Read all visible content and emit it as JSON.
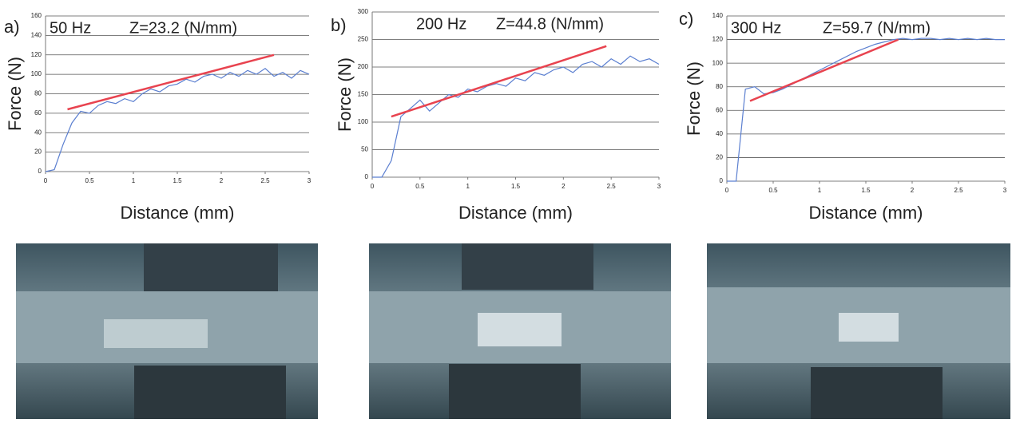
{
  "chart_data": [
    {
      "type": "line",
      "panel": "a)",
      "title": "50 Hz",
      "annotation": "Z=23.2 (N/mm)",
      "x_label": "Distance (mm)",
      "y_label": "Force (N)",
      "xlim": [
        0,
        3
      ],
      "xticks": [
        0,
        0.5,
        1,
        1.5,
        2,
        2.5,
        3
      ],
      "ylim": [
        0,
        160
      ],
      "yticks": [
        0,
        20,
        40,
        60,
        80,
        100,
        120,
        140,
        160
      ],
      "grid": true,
      "x": [
        0,
        0.1,
        0.2,
        0.3,
        0.4,
        0.5,
        0.6,
        0.7,
        0.8,
        0.9,
        1,
        1.1,
        1.2,
        1.3,
        1.4,
        1.5,
        1.6,
        1.7,
        1.8,
        1.9,
        2,
        2.1,
        2.2,
        2.3,
        2.4,
        2.5,
        2.6,
        2.7,
        2.8,
        2.9,
        3
      ],
      "values": [
        0,
        2,
        28,
        50,
        62,
        60,
        68,
        72,
        70,
        75,
        72,
        80,
        85,
        82,
        88,
        90,
        95,
        92,
        98,
        100,
        96,
        102,
        98,
        104,
        100,
        106,
        98,
        102,
        96,
        104,
        100
      ],
      "color": "#5b7fd0",
      "fit_line": {
        "color": "#e8434f",
        "x": [
          0.25,
          2.6
        ],
        "values": [
          64,
          120
        ]
      }
    },
    {
      "type": "line",
      "panel": "b)",
      "title": "200 Hz",
      "annotation": "Z=44.8 (N/mm)",
      "x_label": "Distance (mm)",
      "y_label": "Force (N)",
      "xlim": [
        0,
        3
      ],
      "xticks": [
        0,
        0.5,
        1,
        1.5,
        2,
        2.5,
        3
      ],
      "ylim": [
        0,
        300
      ],
      "yticks": [
        0,
        50,
        100,
        150,
        200,
        250,
        300
      ],
      "grid": true,
      "x": [
        0,
        0.1,
        0.2,
        0.3,
        0.4,
        0.5,
        0.6,
        0.7,
        0.8,
        0.9,
        1,
        1.1,
        1.2,
        1.3,
        1.4,
        1.5,
        1.6,
        1.7,
        1.8,
        1.9,
        2,
        2.1,
        2.2,
        2.3,
        2.4,
        2.5,
        2.6,
        2.7,
        2.8,
        2.9,
        3
      ],
      "values": [
        0,
        0,
        30,
        110,
        125,
        140,
        120,
        135,
        150,
        145,
        160,
        155,
        165,
        170,
        165,
        180,
        175,
        190,
        185,
        195,
        200,
        190,
        205,
        210,
        200,
        215,
        205,
        220,
        210,
        215,
        205
      ],
      "color": "#5b7fd0",
      "fit_line": {
        "color": "#e8434f",
        "x": [
          0.2,
          2.45
        ],
        "values": [
          110,
          238
        ]
      }
    },
    {
      "type": "line",
      "panel": "c)",
      "title": "300 Hz",
      "annotation": "Z=59.7 (N/mm)",
      "x_label": "Distance (mm)",
      "y_label": "Force (N)",
      "xlim": [
        0,
        3
      ],
      "xticks": [
        0,
        0.5,
        1,
        1.5,
        2,
        2.5,
        3
      ],
      "ylim": [
        0,
        140
      ],
      "yticks": [
        0,
        20,
        40,
        60,
        80,
        100,
        120,
        140
      ],
      "grid": true,
      "x": [
        0,
        0.1,
        0.2,
        0.3,
        0.4,
        0.5,
        0.6,
        0.7,
        0.8,
        0.9,
        1,
        1.1,
        1.2,
        1.3,
        1.4,
        1.5,
        1.6,
        1.7,
        1.8,
        1.9,
        2,
        2.1,
        2.2,
        2.3,
        2.4,
        2.5,
        2.6,
        2.7,
        2.8,
        2.9,
        3
      ],
      "values": [
        0,
        0,
        78,
        80,
        74,
        75,
        78,
        82,
        86,
        90,
        94,
        98,
        102,
        106,
        110,
        113,
        116,
        118,
        120,
        121,
        120,
        121,
        121,
        120,
        121,
        120,
        121,
        120,
        121,
        120,
        120
      ],
      "color": "#5b7fd0",
      "fit_line": {
        "color": "#e8434f",
        "x": [
          0.25,
          1.85
        ],
        "values": [
          68,
          120
        ]
      }
    }
  ]
}
